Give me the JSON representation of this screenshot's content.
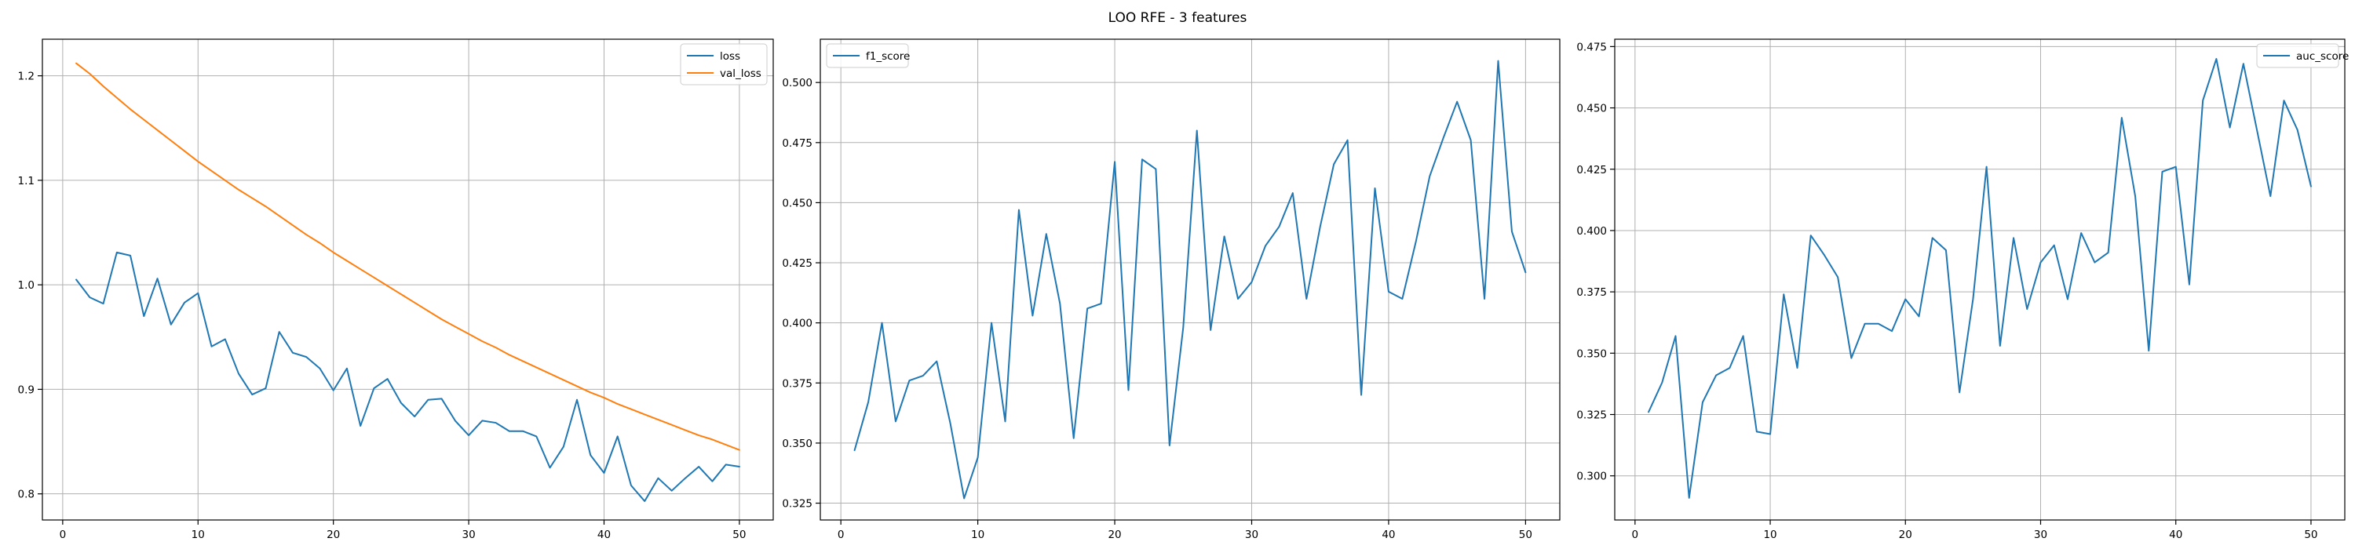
{
  "figure": {
    "title": "LOO RFE - 3 features"
  },
  "colors": {
    "loss": "#1f77b4",
    "val_loss": "#ff7f0e",
    "f1_score": "#1f77b4",
    "auc_score": "#1f77b4",
    "grid": "#b0b0b0"
  },
  "chart_data": [
    {
      "type": "line",
      "title": "",
      "xlabel": "",
      "ylabel": "",
      "grid": true,
      "legend_position": "top-right",
      "xlim": [
        -1.5,
        52.5
      ],
      "ylim": [
        0.775,
        1.235
      ],
      "xticks": [
        0,
        10,
        20,
        30,
        40,
        50
      ],
      "yticks": [
        0.8,
        0.9,
        1.0,
        1.1,
        1.2
      ],
      "ytick_labels": [
        "0.8",
        "0.9",
        "1.0",
        "1.1",
        "1.2"
      ],
      "x": [
        1,
        2,
        3,
        4,
        5,
        6,
        7,
        8,
        9,
        10,
        11,
        12,
        13,
        14,
        15,
        16,
        17,
        18,
        19,
        20,
        21,
        22,
        23,
        24,
        25,
        26,
        27,
        28,
        29,
        30,
        31,
        32,
        33,
        34,
        35,
        36,
        37,
        38,
        39,
        40,
        41,
        42,
        43,
        44,
        45,
        46,
        47,
        48,
        49,
        50
      ],
      "series": [
        {
          "name": "loss",
          "values": [
            1.005,
            0.988,
            0.982,
            1.031,
            1.028,
            0.97,
            1.006,
            0.962,
            0.983,
            0.992,
            0.941,
            0.948,
            0.915,
            0.895,
            0.901,
            0.955,
            0.935,
            0.931,
            0.92,
            0.899,
            0.92,
            0.865,
            0.901,
            0.91,
            0.887,
            0.874,
            0.89,
            0.891,
            0.87,
            0.856,
            0.87,
            0.868,
            0.86,
            0.86,
            0.855,
            0.825,
            0.845,
            0.89,
            0.837,
            0.82,
            0.855,
            0.808,
            0.793,
            0.815,
            0.803,
            0.815,
            0.826,
            0.812,
            0.828,
            0.826
          ]
        },
        {
          "name": "val_loss",
          "values": [
            1.212,
            1.202,
            1.19,
            1.179,
            1.168,
            1.158,
            1.148,
            1.138,
            1.128,
            1.118,
            1.109,
            1.1,
            1.091,
            1.083,
            1.075,
            1.066,
            1.057,
            1.048,
            1.04,
            1.031,
            1.023,
            1.015,
            1.007,
            0.999,
            0.991,
            0.983,
            0.975,
            0.967,
            0.96,
            0.953,
            0.946,
            0.94,
            0.933,
            0.927,
            0.921,
            0.915,
            0.909,
            0.903,
            0.897,
            0.892,
            0.886,
            0.881,
            0.876,
            0.871,
            0.866,
            0.861,
            0.856,
            0.852,
            0.847,
            0.842
          ]
        }
      ]
    },
    {
      "type": "line",
      "title": "",
      "xlabel": "",
      "ylabel": "",
      "grid": true,
      "legend_position": "top-left",
      "xlim": [
        -1.5,
        52.5
      ],
      "ylim": [
        0.318,
        0.518
      ],
      "xticks": [
        0,
        10,
        20,
        30,
        40,
        50
      ],
      "yticks": [
        0.325,
        0.35,
        0.375,
        0.4,
        0.425,
        0.45,
        0.475,
        0.5
      ],
      "ytick_labels": [
        "0.325",
        "0.350",
        "0.375",
        "0.400",
        "0.425",
        "0.450",
        "0.475",
        "0.500"
      ],
      "x": [
        1,
        2,
        3,
        4,
        5,
        6,
        7,
        8,
        9,
        10,
        11,
        12,
        13,
        14,
        15,
        16,
        17,
        18,
        19,
        20,
        21,
        22,
        23,
        24,
        25,
        26,
        27,
        28,
        29,
        30,
        31,
        32,
        33,
        34,
        35,
        36,
        37,
        38,
        39,
        40,
        41,
        42,
        43,
        44,
        45,
        46,
        47,
        48,
        49,
        50
      ],
      "series": [
        {
          "name": "f1_score",
          "values": [
            0.347,
            0.367,
            0.4,
            0.359,
            0.376,
            0.378,
            0.384,
            0.358,
            0.327,
            0.344,
            0.4,
            0.359,
            0.447,
            0.403,
            0.437,
            0.408,
            0.352,
            0.406,
            0.408,
            0.467,
            0.372,
            0.468,
            0.464,
            0.349,
            0.398,
            0.48,
            0.397,
            0.436,
            0.41,
            0.417,
            0.432,
            0.44,
            0.454,
            0.41,
            0.44,
            0.466,
            0.476,
            0.37,
            0.456,
            0.413,
            0.41,
            0.434,
            0.461,
            0.477,
            0.492,
            0.476,
            0.41,
            0.509,
            0.438,
            0.421
          ]
        }
      ]
    },
    {
      "type": "line",
      "title": "",
      "xlabel": "",
      "ylabel": "",
      "grid": true,
      "legend_position": "top-right",
      "xlim": [
        -1.5,
        52.5
      ],
      "ylim": [
        0.282,
        0.478
      ],
      "xticks": [
        0,
        10,
        20,
        30,
        40,
        50
      ],
      "yticks": [
        0.3,
        0.325,
        0.35,
        0.375,
        0.4,
        0.425,
        0.45,
        0.475
      ],
      "ytick_labels": [
        "0.300",
        "0.325",
        "0.350",
        "0.375",
        "0.400",
        "0.425",
        "0.450",
        "0.475"
      ],
      "x": [
        1,
        2,
        3,
        4,
        5,
        6,
        7,
        8,
        9,
        10,
        11,
        12,
        13,
        14,
        15,
        16,
        17,
        18,
        19,
        20,
        21,
        22,
        23,
        24,
        25,
        26,
        27,
        28,
        29,
        30,
        31,
        32,
        33,
        34,
        35,
        36,
        37,
        38,
        39,
        40,
        41,
        42,
        43,
        44,
        45,
        46,
        47,
        48,
        49,
        50
      ],
      "series": [
        {
          "name": "auc_score",
          "values": [
            0.326,
            0.338,
            0.357,
            0.291,
            0.33,
            0.341,
            0.344,
            0.357,
            0.318,
            0.317,
            0.374,
            0.344,
            0.398,
            0.39,
            0.381,
            0.348,
            0.362,
            0.362,
            0.359,
            0.372,
            0.365,
            0.397,
            0.392,
            0.334,
            0.372,
            0.426,
            0.353,
            0.397,
            0.368,
            0.387,
            0.394,
            0.372,
            0.399,
            0.387,
            0.391,
            0.446,
            0.414,
            0.351,
            0.424,
            0.426,
            0.378,
            0.453,
            0.47,
            0.442,
            0.468,
            0.441,
            0.414,
            0.453,
            0.441,
            0.418
          ]
        }
      ]
    }
  ]
}
